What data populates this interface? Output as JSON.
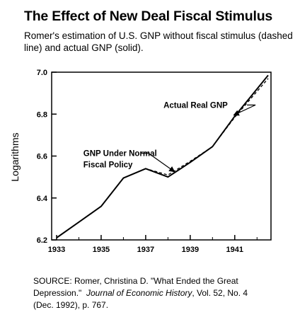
{
  "title": "The Effect of New Deal Fiscal Stimulus",
  "subtitle": "Romer's estimation of U.S. GNP without fiscal stimulus (dashed line) and actual GNP (solid).",
  "source": {
    "line1_prefix": "SOURCE: Romer, Christina D. \"What Ended the Great",
    "line2_prefix": "Depression.\"",
    "journal": "Journal of Economic History",
    "line2_suffix": ", Vol. 52, No. 4",
    "line3": "(Dec. 1992), p. 767."
  },
  "chart_data": {
    "type": "line",
    "title": "",
    "xlabel": "",
    "ylabel": "Logarithms",
    "xlim": [
      1933,
      1942.6
    ],
    "ylim": [
      6.2,
      7.0
    ],
    "x_ticks": [
      1933,
      1935,
      1937,
      1939,
      1941
    ],
    "y_ticks": [
      6.2,
      6.4,
      6.6,
      6.8,
      7.0
    ],
    "x_tick_labels": [
      "1933",
      "1935",
      "1937",
      "1939",
      "1941"
    ],
    "y_tick_labels": [
      "6.2",
      "6.4",
      "6.6",
      "6.8",
      "7.0"
    ],
    "grid": false,
    "x": [
      1933,
      1934,
      1935,
      1936,
      1937,
      1938,
      1939,
      1940,
      1941,
      1942.5
    ],
    "series": [
      {
        "name": "Actual Real GNP",
        "style": "solid",
        "values": [
          6.21,
          6.285,
          6.36,
          6.495,
          6.54,
          6.5,
          6.57,
          6.645,
          6.79,
          6.985
        ]
      },
      {
        "name": "GNP Under Normal Fiscal Policy",
        "style": "dashed",
        "values": [
          6.21,
          6.285,
          6.36,
          6.495,
          6.54,
          6.51,
          6.575,
          6.645,
          6.785,
          6.97
        ]
      }
    ],
    "annotations": [
      {
        "series": 0,
        "lines": [
          "Actual Real GNP"
        ],
        "text_at": [
          1937.8,
          6.83
        ],
        "arrow_to": [
          1940.95,
          6.795
        ]
      },
      {
        "series": 1,
        "lines": [
          "GNP Under Normal",
          "Fiscal Policy"
        ],
        "text_at": [
          1934.2,
          6.6
        ],
        "arrow_to": [
          1938.3,
          6.525
        ]
      }
    ]
  },
  "colors": {
    "ink": "#000000",
    "background": "#ffffff"
  }
}
